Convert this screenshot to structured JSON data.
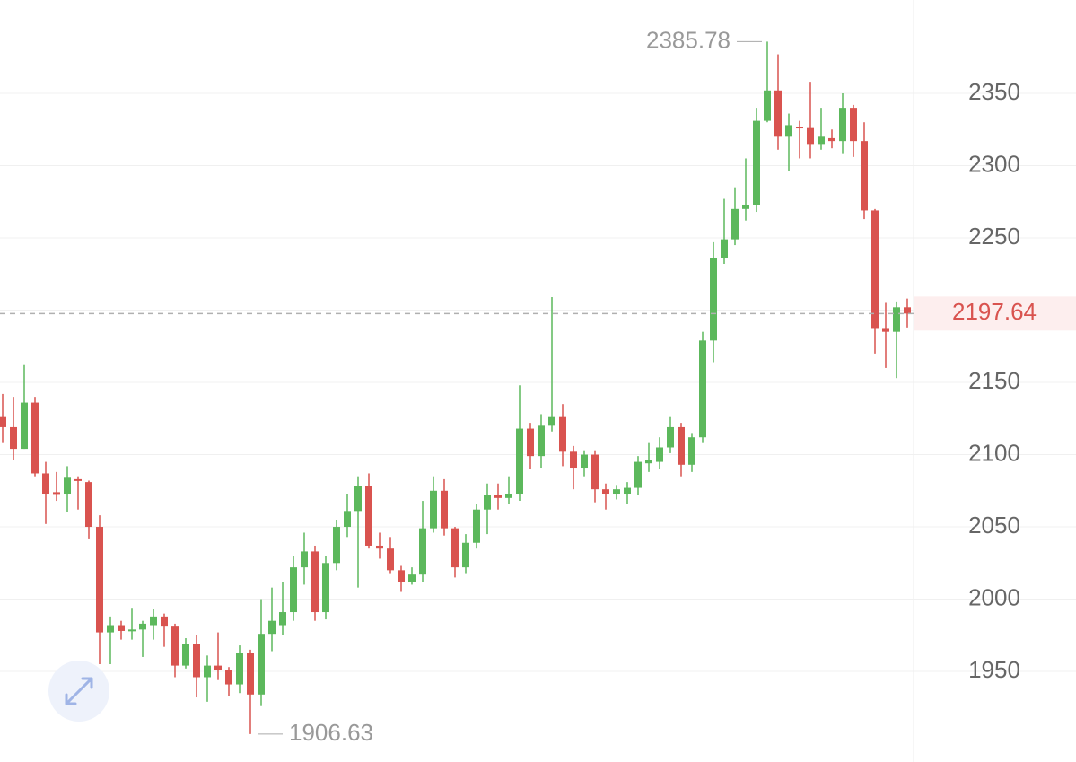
{
  "chart_data": {
    "type": "candlestick",
    "up_color": "#5cb85c",
    "down_color": "#d9534f",
    "open": [
      2126,
      2119,
      2104,
      2136,
      2087,
      2074,
      2073,
      2083,
      2081,
      2050,
      1977,
      1982,
      1978,
      1979,
      1982,
      1988,
      1981,
      1954,
      1969,
      1946,
      1954,
      1951,
      1941,
      1963,
      1934,
      1976,
      1982,
      1991,
      2022,
      2033,
      1991,
      2025,
      2050,
      2061,
      2078,
      2037,
      2035,
      2020,
      2012,
      2017,
      2049,
      2075,
      2049,
      2022,
      2039,
      2062,
      2072,
      2070,
      2073,
      2118,
      2099,
      2120,
      2126,
      2102,
      2091,
      2100,
      2076,
      2073,
      2073,
      2077,
      2094,
      2095,
      2105,
      2119,
      2093,
      2112,
      2179,
      2236,
      2249,
      2270,
      2273,
      2331,
      2352,
      2320,
      2327,
      2326,
      2315,
      2319,
      2317,
      2340,
      2317,
      2269,
      2187,
      2185,
      2202
    ],
    "high": [
      2142,
      2140,
      2162,
      2140,
      2095,
      2088,
      2092,
      2085,
      2082,
      2058,
      1988,
      1985,
      1994,
      1985,
      1993,
      1990,
      1983,
      1973,
      1975,
      1961,
      1977,
      1953,
      1968,
      1965,
      2000,
      2008,
      2012,
      2030,
      2046,
      2037,
      2030,
      2055,
      2073,
      2085,
      2087,
      2046,
      2043,
      2023,
      2022,
      2068,
      2085,
      2083,
      2050,
      2045,
      2066,
      2080,
      2080,
      2085,
      2148,
      2122,
      2128,
      2209,
      2135,
      2106,
      2103,
      2103,
      2080,
      2079,
      2081,
      2099,
      2108,
      2112,
      2126,
      2122,
      2115,
      2185,
      2247,
      2277,
      2285,
      2305,
      2340,
      2385.78,
      2377,
      2336,
      2331,
      2358,
      2340,
      2325,
      2350,
      2342,
      2330,
      2270,
      2205,
      2206,
      2208
    ],
    "low": [
      2108,
      2096,
      2104,
      2085,
      2052,
      2068,
      2060,
      2062,
      2042,
      1955,
      1955,
      1972,
      1972,
      1960,
      1972,
      1967,
      1946,
      1952,
      1932,
      1929,
      1944,
      1933,
      1935,
      1906.63,
      1926,
      1964,
      1975,
      1985,
      2010,
      1985,
      1986,
      2020,
      2043,
      2008,
      2035,
      2028,
      2018,
      2005,
      2010,
      2012,
      2046,
      2044,
      2015,
      2018,
      2035,
      2045,
      2062,
      2066,
      2068,
      2090,
      2091,
      2116,
      2092,
      2076,
      2085,
      2067,
      2062,
      2069,
      2066,
      2072,
      2088,
      2090,
      2101,
      2085,
      2088,
      2108,
      2164,
      2232,
      2245,
      2262,
      2268,
      2330,
      2311,
      2296,
      2305,
      2305,
      2311,
      2312,
      2308,
      2306,
      2263,
      2170,
      2160,
      2153,
      2188
    ],
    "close": [
      2119,
      2104,
      2136,
      2087,
      2073,
      2073,
      2084,
      2082,
      2050,
      1977,
      1982,
      1978,
      1979,
      1983,
      1988,
      1981,
      1954,
      1969,
      1946,
      1954,
      1951,
      1941,
      1963,
      1934,
      1976,
      1985,
      1991,
      2022,
      2033,
      1991,
      2025,
      2050,
      2061,
      2078,
      2037,
      2035,
      2020,
      2012,
      2017,
      2049,
      2075,
      2049,
      2022,
      2039,
      2062,
      2072,
      2070,
      2073,
      2118,
      2099,
      2120,
      2126,
      2102,
      2091,
      2100,
      2076,
      2073,
      2076,
      2077,
      2095,
      2096,
      2105,
      2119,
      2093,
      2112,
      2179,
      2236,
      2249,
      2270,
      2273,
      2331,
      2352,
      2320,
      2328,
      2326,
      2315,
      2320,
      2317,
      2340,
      2317,
      2269,
      2187,
      2185,
      2202,
      2197.64
    ],
    "ylim": [
      1887.3,
      2414.6
    ],
    "yticks": [
      1950,
      2000,
      2050,
      2100,
      2150,
      2200,
      2250,
      2300,
      2350
    ],
    "grid": true,
    "max_label": 2385.78,
    "min_label": 1906.63,
    "last_price": 2197.64
  }
}
